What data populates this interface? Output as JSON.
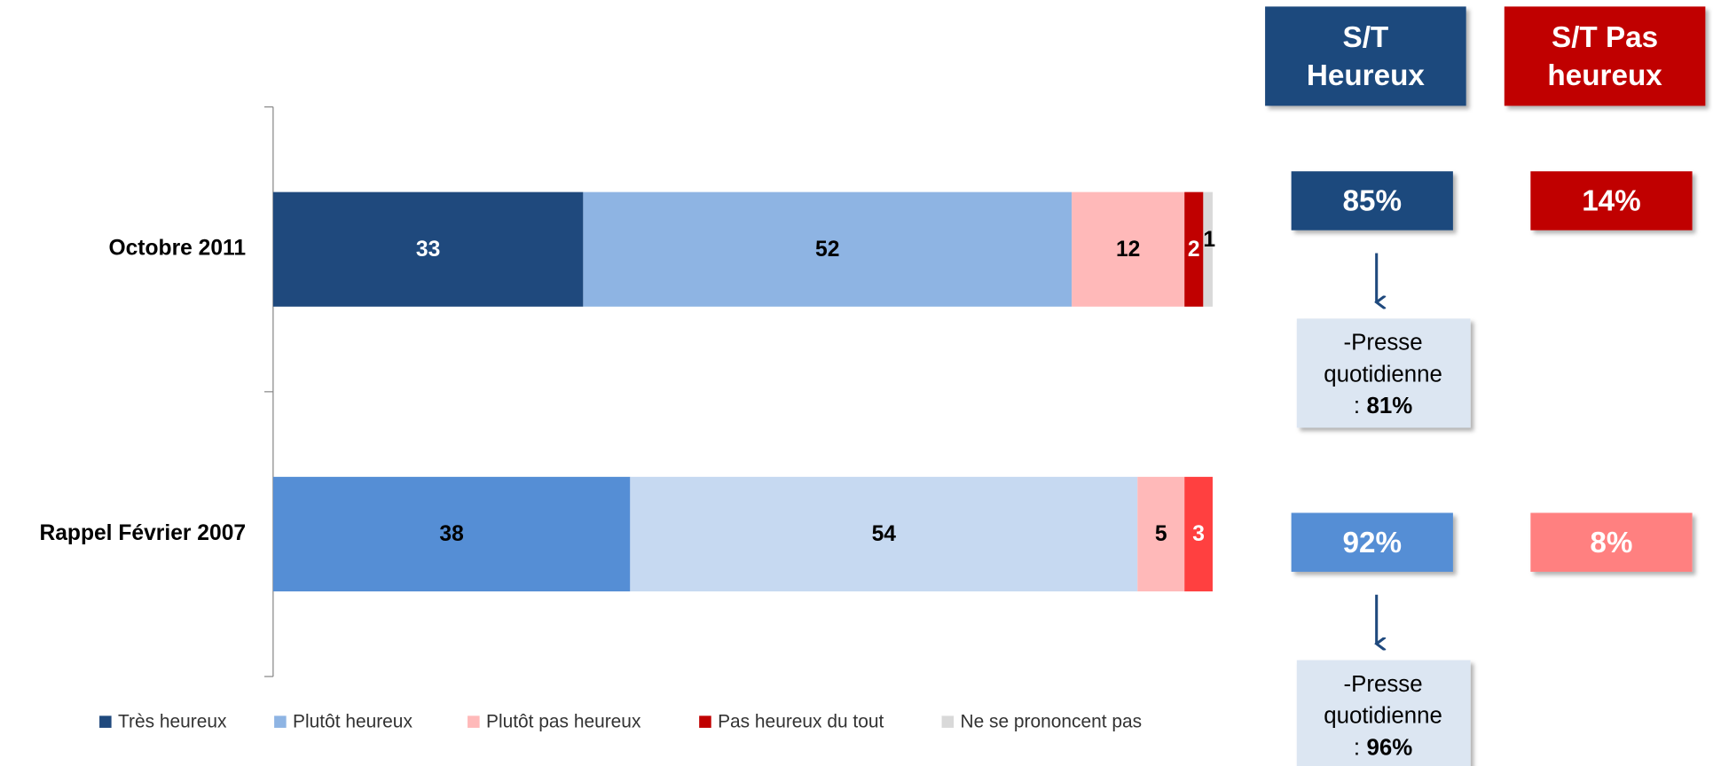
{
  "chart_data": {
    "type": "stacked-bar",
    "categories": [
      "Octobre 2011",
      "Rappel Février 2007"
    ],
    "series": [
      {
        "name": "Très heureux",
        "color": "#1f497d",
        "colors": [
          "#1f497d",
          "#558ed5"
        ],
        "values": [
          33,
          38
        ]
      },
      {
        "name": "Plutôt heureux",
        "color": "#8eb4e3",
        "colors": [
          "#8eb4e3",
          "#c6d9f1"
        ],
        "values": [
          52,
          54
        ]
      },
      {
        "name": "Plutôt pas heureux",
        "color": "#ffb9b9",
        "colors": [
          "#ffb9b9",
          "#ffb9b9"
        ],
        "values": [
          12,
          5
        ]
      },
      {
        "name": "Pas heureux du tout",
        "color": "#c00000",
        "colors": [
          "#c00000",
          "#ff4040"
        ],
        "values": [
          2,
          3
        ]
      },
      {
        "name": "Ne se prononcent pas",
        "color": "#d9d9d9",
        "colors": [
          "#d9d9d9",
          "#d9d9d9"
        ],
        "values": [
          1,
          null
        ]
      }
    ],
    "xlim": [
      0,
      100
    ],
    "legend": "bottom"
  },
  "summary": {
    "headers": [
      [
        "S/T",
        "Heureux"
      ],
      [
        "S/T Pas",
        "heureux"
      ]
    ],
    "header_colors": [
      "#1f497d",
      "#c00000"
    ],
    "rows": [
      {
        "heureux": "85%",
        "pas_heureux": "14%",
        "colors": [
          "#1f497d",
          "#c00000"
        ],
        "note_lines": [
          "-Presse",
          "quotidienne",
          ":"
        ],
        "note_value": "81%"
      },
      {
        "heureux": "92%",
        "pas_heureux": "8%",
        "colors": [
          "#558ed5",
          "#ff8080"
        ],
        "note_lines": [
          "-Presse",
          "quotidienne",
          ":"
        ],
        "note_value": "96%"
      }
    ]
  }
}
